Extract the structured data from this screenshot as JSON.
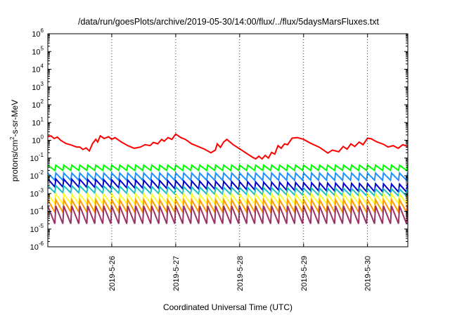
{
  "chart_data": {
    "type": "line",
    "title": "/data/run/goesPlots/archive/2019-05-30/14:00/flux/../flux/5daysMarsFluxes.txt",
    "xlabel": "Coordinated Universal Time (UTC)",
    "ylabel_prefix": "protons/cm",
    "ylabel_sup": "2",
    "ylabel_suffix": "-s-sr-MeV",
    "y_scale": "log",
    "ylim": [
      1e-06,
      1000000.0
    ],
    "y_ticks": [
      {
        "base": "10",
        "exp": "-6",
        "value": -6
      },
      {
        "base": "10",
        "exp": "-5",
        "value": -5
      },
      {
        "base": "10",
        "exp": "-4",
        "value": -4
      },
      {
        "base": "10",
        "exp": "-3",
        "value": -3
      },
      {
        "base": "10",
        "exp": "-2",
        "value": -2
      },
      {
        "base": "10",
        "exp": "-1",
        "value": -1
      },
      {
        "base": "10",
        "exp": "0",
        "value": 0
      },
      {
        "base": "10",
        "exp": "1",
        "value": 1
      },
      {
        "base": "10",
        "exp": "2",
        "value": 2
      },
      {
        "base": "10",
        "exp": "3",
        "value": 3
      },
      {
        "base": "10",
        "exp": "4",
        "value": 4
      },
      {
        "base": "10",
        "exp": "5",
        "value": 5
      },
      {
        "base": "10",
        "exp": "6",
        "value": 6
      }
    ],
    "xlim_days": [
      0,
      5.63
    ],
    "x_ticks": [
      {
        "label": "2019-5-26",
        "day": 1.0
      },
      {
        "label": "2019-5-27",
        "day": 2.0
      },
      {
        "label": "2019-5-28",
        "day": 3.0
      },
      {
        "label": "2019-5-29",
        "day": 4.0
      },
      {
        "label": "2019-5-30",
        "day": 5.0
      }
    ],
    "grid": "dotted vertical at date ticks",
    "legend": "none",
    "series": [
      {
        "color": "#ff0000",
        "log_values": [
          [
            0.0,
            0.2
          ],
          [
            0.05,
            0.25
          ],
          [
            0.1,
            0.1
          ],
          [
            0.15,
            0.18
          ],
          [
            0.2,
            0.0
          ],
          [
            0.28,
            -0.18
          ],
          [
            0.36,
            -0.26
          ],
          [
            0.45,
            -0.38
          ],
          [
            0.5,
            -0.38
          ],
          [
            0.55,
            -0.52
          ],
          [
            0.6,
            -0.43
          ],
          [
            0.65,
            -0.6
          ],
          [
            0.7,
            -0.18
          ],
          [
            0.75,
            0.05
          ],
          [
            0.78,
            -0.1
          ],
          [
            0.82,
            0.25
          ],
          [
            0.88,
            0.1
          ],
          [
            0.95,
            0.2
          ],
          [
            1.0,
            0.05
          ],
          [
            1.05,
            0.15
          ],
          [
            1.15,
            -0.1
          ],
          [
            1.25,
            -0.3
          ],
          [
            1.35,
            -0.45
          ],
          [
            1.45,
            -0.38
          ],
          [
            1.52,
            -0.25
          ],
          [
            1.6,
            -0.3
          ],
          [
            1.65,
            -0.12
          ],
          [
            1.72,
            -0.2
          ],
          [
            1.78,
            0.05
          ],
          [
            1.82,
            -0.05
          ],
          [
            1.88,
            0.15
          ],
          [
            1.94,
            0.05
          ],
          [
            2.0,
            0.35
          ],
          [
            2.08,
            0.15
          ],
          [
            2.15,
            0.05
          ],
          [
            2.25,
            -0.2
          ],
          [
            2.35,
            -0.35
          ],
          [
            2.45,
            -0.5
          ],
          [
            2.55,
            -0.7
          ],
          [
            2.62,
            -0.55
          ],
          [
            2.65,
            -0.2
          ],
          [
            2.7,
            -0.4
          ],
          [
            2.75,
            -0.1
          ],
          [
            2.8,
            0.05
          ],
          [
            2.9,
            -0.25
          ],
          [
            3.0,
            -0.48
          ],
          [
            3.1,
            -0.72
          ],
          [
            3.2,
            -0.95
          ],
          [
            3.25,
            -1.05
          ],
          [
            3.3,
            -0.9
          ],
          [
            3.35,
            -1.05
          ],
          [
            3.4,
            -0.85
          ],
          [
            3.45,
            -1.0
          ],
          [
            3.5,
            -0.68
          ],
          [
            3.55,
            -0.78
          ],
          [
            3.6,
            -0.3
          ],
          [
            3.65,
            -0.45
          ],
          [
            3.7,
            -0.2
          ],
          [
            3.75,
            -0.25
          ],
          [
            3.82,
            0.12
          ],
          [
            3.9,
            0.15
          ],
          [
            4.0,
            0.05
          ],
          [
            4.1,
            -0.15
          ],
          [
            4.25,
            -0.4
          ],
          [
            4.38,
            -0.72
          ],
          [
            4.45,
            -0.55
          ],
          [
            4.55,
            -0.65
          ],
          [
            4.62,
            -0.35
          ],
          [
            4.68,
            -0.5
          ],
          [
            4.74,
            -0.2
          ],
          [
            4.8,
            -0.35
          ],
          [
            4.87,
            -0.1
          ],
          [
            4.93,
            -0.25
          ],
          [
            5.0,
            0.12
          ],
          [
            5.06,
            0.08
          ],
          [
            5.15,
            -0.1
          ],
          [
            5.25,
            -0.22
          ],
          [
            5.32,
            -0.38
          ],
          [
            5.4,
            -0.3
          ],
          [
            5.48,
            -0.45
          ],
          [
            5.55,
            -0.25
          ],
          [
            5.63,
            -0.35
          ]
        ]
      },
      {
        "color": "#00ff00",
        "base": -1.55,
        "amp": 0.3,
        "trend": [
          0.0,
          0.0
        ]
      },
      {
        "color": "#1e90ff",
        "base": -2.05,
        "amp": 0.4,
        "trend": [
          0.0,
          0.0
        ]
      },
      {
        "color": "#0000cc",
        "base": -2.55,
        "amp": 0.45,
        "trend": [
          0.15,
          -0.15
        ]
      },
      {
        "color": "#20c0c0",
        "base": -2.85,
        "amp": 0.4,
        "trend": [
          0.1,
          -0.1
        ]
      },
      {
        "color": "#ffff33",
        "base": -3.3,
        "amp": 0.55,
        "trend": [
          0.0,
          0.0
        ]
      },
      {
        "color": "#ff9900",
        "base": -3.7,
        "amp": 0.7,
        "trend": [
          0.0,
          0.0
        ]
      },
      {
        "color": "#993366",
        "base": -4.2,
        "amp": 1.0,
        "trend": [
          0.0,
          0.0
        ]
      }
    ],
    "cycle_days": 0.125
  }
}
